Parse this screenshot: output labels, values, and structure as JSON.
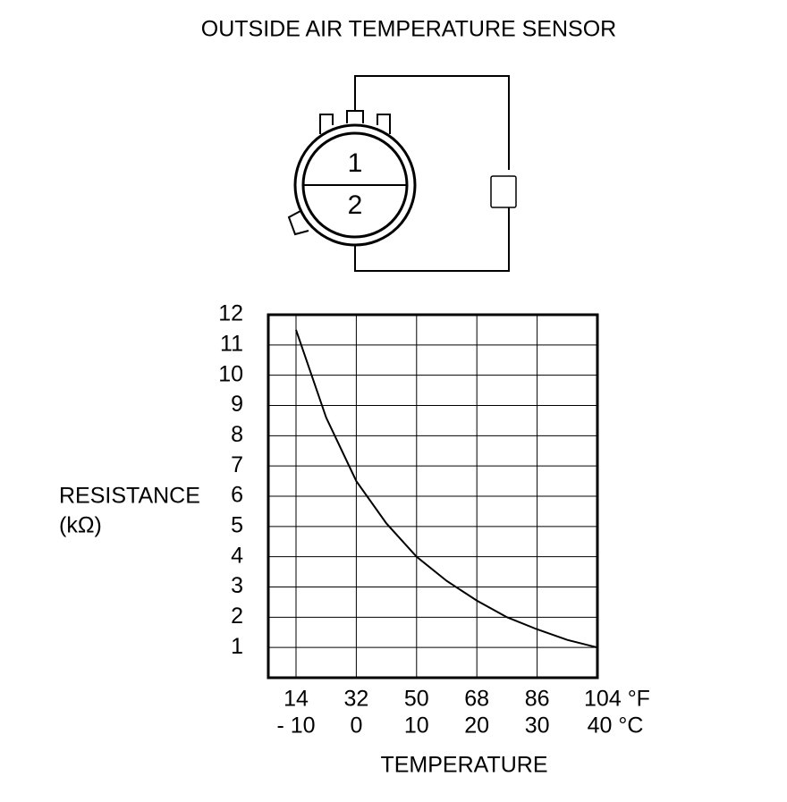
{
  "chart_data": {
    "type": "line",
    "title": "OUTSIDE AIR TEMPERATURE SENSOR",
    "ylabel": [
      "RESISTANCE",
      "(kΩ)"
    ],
    "xlabel": "TEMPERATURE",
    "x": [
      -10,
      -5,
      0,
      5,
      10,
      15,
      20,
      25,
      30,
      35,
      40
    ],
    "series": [
      {
        "name": "Resistance",
        "color": "#000000",
        "values": [
          11.5,
          8.6,
          6.5,
          5.1,
          4.0,
          3.2,
          2.55,
          2.0,
          1.6,
          1.25,
          1.0
        ]
      }
    ],
    "xlim": [
      -14.6,
      40
    ],
    "ylim": [
      0,
      12
    ],
    "xticks": [
      {
        "value": -10,
        "label": "- 10"
      },
      0,
      10,
      20,
      30,
      {
        "value": 40,
        "label": "40 °C"
      }
    ],
    "xticks_fahrenheit": [
      "14",
      "32",
      "50",
      "68",
      "86",
      "104 °F"
    ],
    "yticks": [
      1,
      2,
      3,
      4,
      5,
      6,
      7,
      8,
      9,
      10,
      11,
      12
    ],
    "grid": true
  },
  "diagram": {
    "pins": [
      "1",
      "2"
    ]
  }
}
